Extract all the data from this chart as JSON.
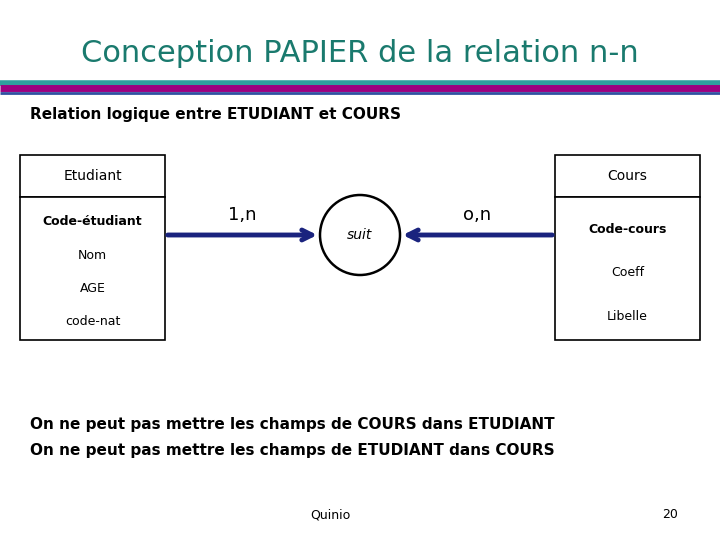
{
  "title": "Conception PAPIER de la relation n-n",
  "title_color": "#1a7a6e",
  "title_fontsize": 22,
  "subtitle": "Relation logique entre ETUDIANT et COURS",
  "subtitle_fontsize": 11,
  "bg_color": "#ffffff",
  "line_teal_color": "#2e9e9e",
  "line_purple_color": "#9b0080",
  "line_blue_color": "#3050a0",
  "etudiant_box_title": "Etudiant",
  "etudiant_box_fields": [
    "Code-étudiant",
    "Nom",
    "AGE",
    "code-nat"
  ],
  "cours_box_title": "Cours",
  "cours_box_fields": [
    "Code-cours",
    "Coeff",
    "Libelle"
  ],
  "ellipse_label": "suit",
  "arrow_color": "#1a237e",
  "label_1n": "1,n",
  "label_0n": "o,n",
  "footer_line1": "On ne peut pas mettre les champs de COURS dans ETUDIANT",
  "footer_line2": "On ne peut pas mettre les champs de ETUDIANT dans COURS",
  "footer_fontsize": 11,
  "quinio_text": "Quinio",
  "page_num": "20"
}
